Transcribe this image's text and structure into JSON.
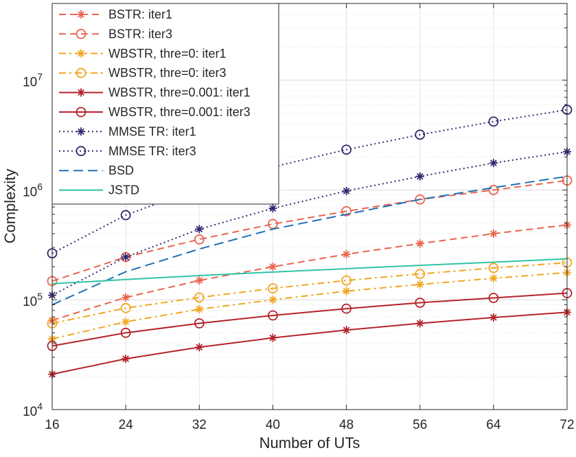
{
  "chart_data": {
    "type": "line",
    "title": "",
    "xlabel": "Number of UTs",
    "ylabel": "Complexity",
    "x": [
      16,
      24,
      32,
      40,
      48,
      56,
      64,
      72
    ],
    "xlim": [
      16,
      72
    ],
    "ylim": [
      10000,
      50000000
    ],
    "y_scale": "log",
    "grid": true,
    "legend_position": "top-left",
    "x_tick_labels": [
      "16",
      "24",
      "32",
      "40",
      "48",
      "56",
      "64",
      "72"
    ],
    "y_ticks": [
      {
        "value": 10000,
        "base": "10",
        "exp": "4"
      },
      {
        "value": 100000,
        "base": "10",
        "exp": "5"
      },
      {
        "value": 1000000,
        "base": "10",
        "exp": "6"
      },
      {
        "value": 10000000,
        "base": "10",
        "exp": "7"
      }
    ],
    "series": [
      {
        "name": "BSTR: iter1",
        "color": "#e8644e",
        "dash": "dashed",
        "marker": "asterisk",
        "values": [
          65000,
          105000,
          150000,
          200000,
          260000,
          325000,
          400000,
          480000
        ]
      },
      {
        "name": "BSTR: iter3",
        "color": "#e8644e",
        "dash": "dashed",
        "marker": "circle",
        "values": [
          148000,
          245000,
          355000,
          490000,
          640000,
          820000,
          1000000,
          1220000
        ]
      },
      {
        "name": "WBSTR, thre=0: iter1",
        "color": "#f2a51f",
        "dash": "dashdot",
        "marker": "asterisk",
        "values": [
          44000,
          63000,
          82000,
          100000,
          120000,
          138000,
          157000,
          177000
        ]
      },
      {
        "name": "WBSTR, thre=0: iter3",
        "color": "#f2a51f",
        "dash": "dashdot",
        "marker": "circle",
        "values": [
          61000,
          84000,
          105000,
          127000,
          150000,
          172000,
          195000,
          218000
        ]
      },
      {
        "name": "WBSTR, thre=0.001: iter1",
        "color": "#b5222a",
        "dash": "solid",
        "marker": "asterisk",
        "values": [
          21000,
          29000,
          37000,
          45000,
          53000,
          61000,
          69000,
          77000
        ]
      },
      {
        "name": "WBSTR, thre=0.001: iter3",
        "color": "#b5222a",
        "dash": "solid",
        "marker": "circle",
        "values": [
          38000,
          50000,
          61000,
          72000,
          83000,
          94000,
          104000,
          115000
        ]
      },
      {
        "name": "MMSE TR: iter1",
        "color": "#2f2870",
        "dash": "dotted",
        "marker": "asterisk",
        "values": [
          110000,
          245000,
          440000,
          680000,
          980000,
          1330000,
          1760000,
          2230000
        ]
      },
      {
        "name": "MMSE TR: iter3",
        "color": "#2f2870",
        "dash": "dotted",
        "marker": "circle",
        "values": [
          265000,
          590000,
          1040000,
          1620000,
          2330000,
          3190000,
          4200000,
          5380000
        ]
      },
      {
        "name": "BSD",
        "color": "#1f6fb5",
        "dash": "longdash",
        "marker": "none",
        "values": [
          90000,
          180000,
          290000,
          440000,
          600000,
          820000,
          1050000,
          1330000
        ]
      },
      {
        "name": "JSTD",
        "color": "#2ec4a6",
        "dash": "solid",
        "marker": "none",
        "values": [
          140000,
          153000,
          166000,
          179000,
          192000,
          206000,
          220000,
          236000
        ]
      }
    ]
  }
}
